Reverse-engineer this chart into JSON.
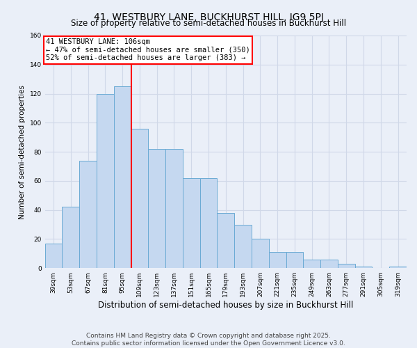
{
  "title": "41, WESTBURY LANE, BUCKHURST HILL, IG9 5PJ",
  "subtitle": "Size of property relative to semi-detached houses in Buckhurst Hill",
  "xlabel": "Distribution of semi-detached houses by size in Buckhurst Hill",
  "ylabel": "Number of semi-detached properties",
  "footer": "Contains HM Land Registry data © Crown copyright and database right 2025.\nContains public sector information licensed under the Open Government Licence v3.0.",
  "categories": [
    "39sqm",
    "53sqm",
    "67sqm",
    "81sqm",
    "95sqm",
    "109sqm",
    "123sqm",
    "137sqm",
    "151sqm",
    "165sqm",
    "179sqm",
    "193sqm",
    "207sqm",
    "221sqm",
    "235sqm",
    "249sqm",
    "263sqm",
    "277sqm",
    "291sqm",
    "305sqm",
    "319sqm"
  ],
  "values": [
    17,
    42,
    74,
    120,
    125,
    96,
    82,
    82,
    62,
    62,
    38,
    30,
    20,
    11,
    11,
    6,
    6,
    3,
    1,
    0,
    1
  ],
  "bar_color": "#c5d8f0",
  "bar_edge_color": "#6aaad4",
  "property_label": "41 WESTBURY LANE: 106sqm",
  "pct_smaller": 47,
  "pct_smaller_count": 350,
  "pct_larger": 52,
  "pct_larger_count": 383,
  "vline_x_index": 4.5,
  "ylim": [
    0,
    160
  ],
  "yticks": [
    0,
    20,
    40,
    60,
    80,
    100,
    120,
    140,
    160
  ],
  "bg_color": "#eaeff8",
  "plot_bg_color": "#eaeff8",
  "grid_color": "#d0d8e8",
  "title_fontsize": 10,
  "subtitle_fontsize": 8.5,
  "xlabel_fontsize": 8.5,
  "ylabel_fontsize": 7.5,
  "tick_fontsize": 6.5,
  "annotation_fontsize": 7.5,
  "footer_fontsize": 6.5
}
